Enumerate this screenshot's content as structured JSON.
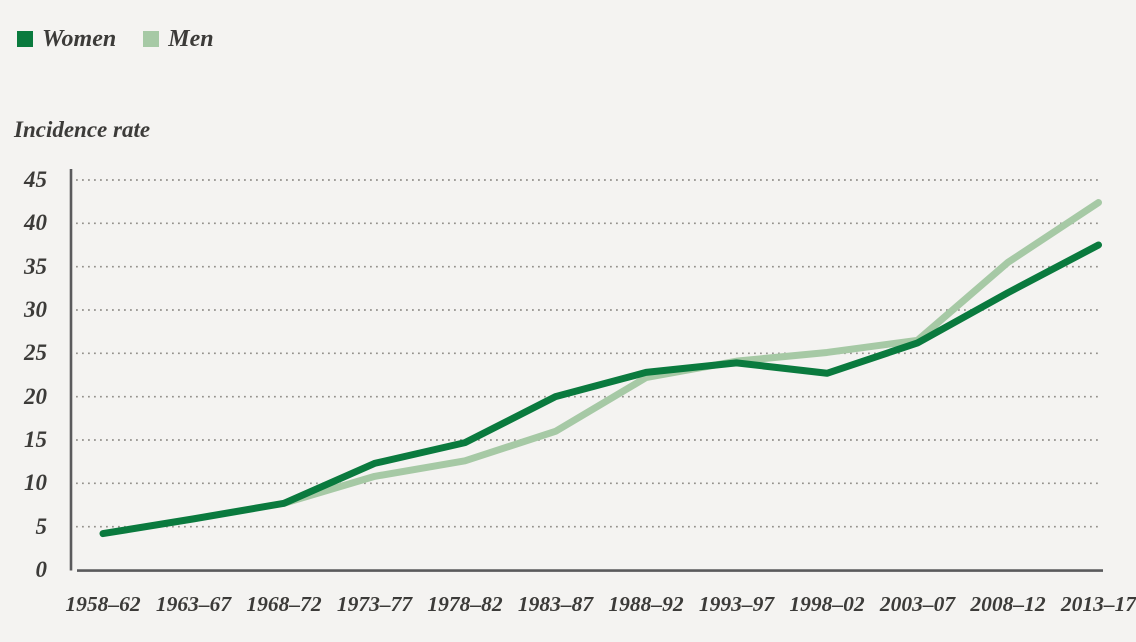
{
  "colors": {
    "background": "#f4f3f1",
    "women": "#0a7a3e",
    "men": "#a6c9a5",
    "text": "#3c3b39",
    "axis": "#5a5a5c",
    "grid": "#94928d"
  },
  "legend": {
    "items": [
      {
        "label": "Women",
        "color_key": "women"
      },
      {
        "label": "Men",
        "color_key": "men"
      }
    ]
  },
  "y_axis_title": "Incidence rate",
  "chart_data": {
    "type": "line",
    "title": "",
    "ylabel": "Incidence rate",
    "xlabel": "",
    "ylim": [
      0,
      45
    ],
    "yticks": [
      0,
      5,
      10,
      15,
      20,
      25,
      30,
      35,
      40,
      45
    ],
    "grid": "horizontal-dotted",
    "legend_position": "top-left",
    "categories": [
      "1958–62",
      "1963–67",
      "1968–72",
      "1973–77",
      "1978–82",
      "1983–87",
      "1988–92",
      "1993–97",
      "1998–02",
      "2003–07",
      "2008–12",
      "2013–17"
    ],
    "series": [
      {
        "name": "Women",
        "color_key": "women",
        "values": [
          4.2,
          5.9,
          7.7,
          12.3,
          14.7,
          20.0,
          22.8,
          23.9,
          22.7,
          26.2,
          32.0,
          37.5
        ]
      },
      {
        "name": "Men",
        "color_key": "men",
        "values": [
          null,
          null,
          7.7,
          10.8,
          12.6,
          16.0,
          22.2,
          24.1,
          25.1,
          26.5,
          35.5,
          42.4
        ]
      }
    ]
  }
}
